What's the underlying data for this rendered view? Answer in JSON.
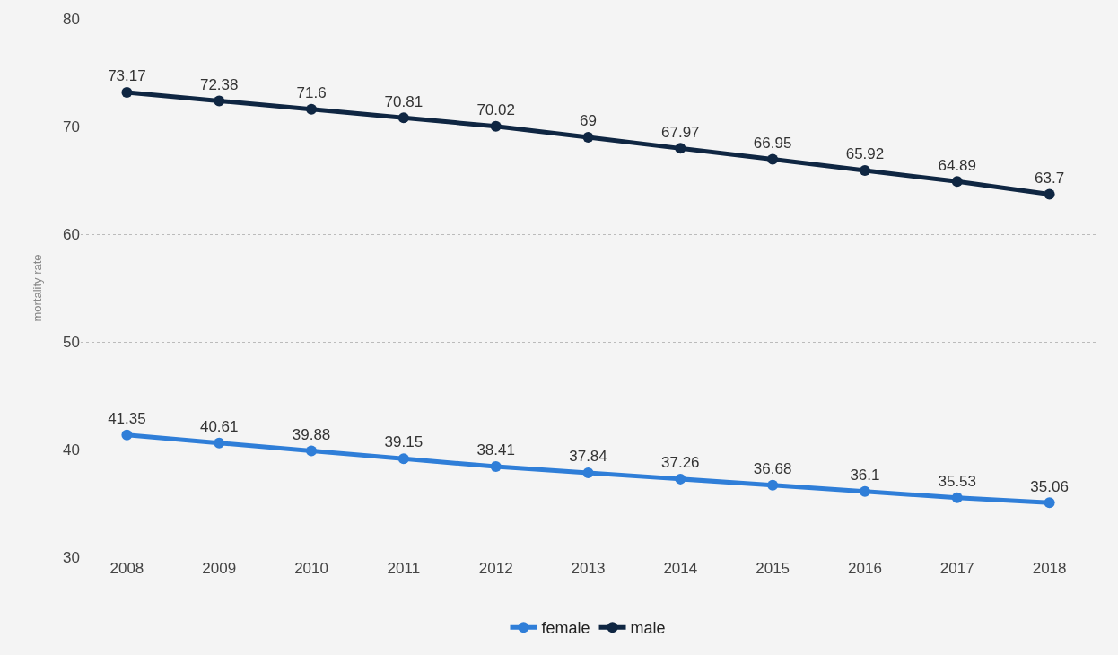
{
  "chart_data": {
    "type": "line",
    "ylabel": "mortality rate",
    "categories": [
      "2008",
      "2009",
      "2010",
      "2011",
      "2012",
      "2013",
      "2014",
      "2015",
      "2016",
      "2017",
      "2018"
    ],
    "series": [
      {
        "name": "female",
        "color": "#2f7ed8",
        "values": [
          41.35,
          40.61,
          39.88,
          39.15,
          38.41,
          37.84,
          37.26,
          36.68,
          36.1,
          35.53,
          35.06
        ]
      },
      {
        "name": "male",
        "color": "#0f2642",
        "values": [
          73.17,
          72.38,
          71.6,
          70.81,
          70.02,
          69,
          67.97,
          66.95,
          65.92,
          64.89,
          63.7
        ]
      }
    ],
    "ylim": [
      30,
      80
    ],
    "yticks": [
      30,
      40,
      50,
      60,
      70,
      80
    ],
    "grid": "y",
    "legend": "bottom",
    "marker": "circle",
    "line_style": "solid",
    "data_labels": true
  }
}
